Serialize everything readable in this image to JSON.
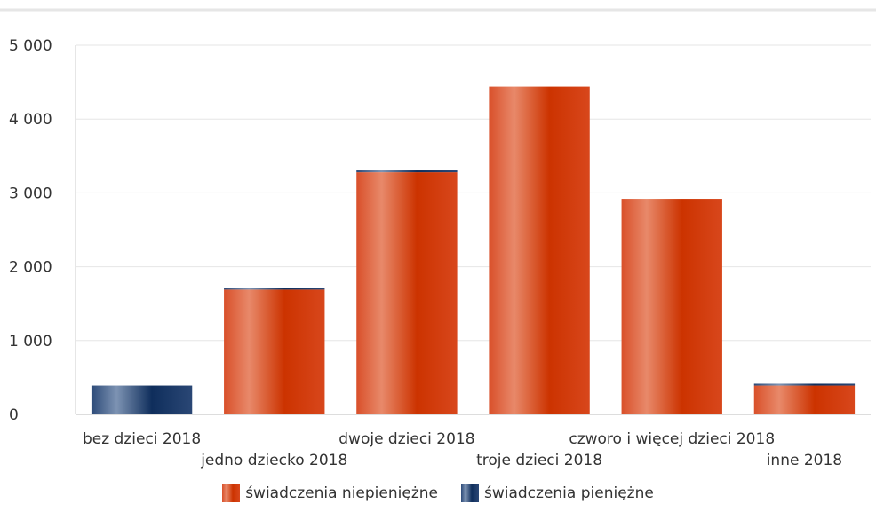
{
  "chart_data": {
    "type": "bar",
    "stacked": true,
    "title": "",
    "xlabel": "",
    "ylabel": "",
    "ylim": [
      0,
      5000
    ],
    "yticks": [
      0,
      1000,
      2000,
      3000,
      4000,
      5000
    ],
    "ytick_labels": [
      "0",
      "1 000",
      "2 000",
      "3 000",
      "4 000",
      "5 000"
    ],
    "grid": true,
    "legend_position": "bottom",
    "categories": [
      "bez dzieci 2018",
      "jedno dziecko 2018",
      "dwoje dzieci 2018",
      "troje dzieci 2018",
      "czworo i więcej dzieci 2018",
      "inne 2018"
    ],
    "series": [
      {
        "name": "świadczenia niepieniężne",
        "color": "#d43a0e",
        "values": [
          0,
          1690,
          3280,
          4440,
          2920,
          390
        ]
      },
      {
        "name": "świadczenia pieniężne",
        "color": "#1f3f6e",
        "values": [
          390,
          25,
          25,
          0,
          0,
          25
        ]
      }
    ]
  }
}
